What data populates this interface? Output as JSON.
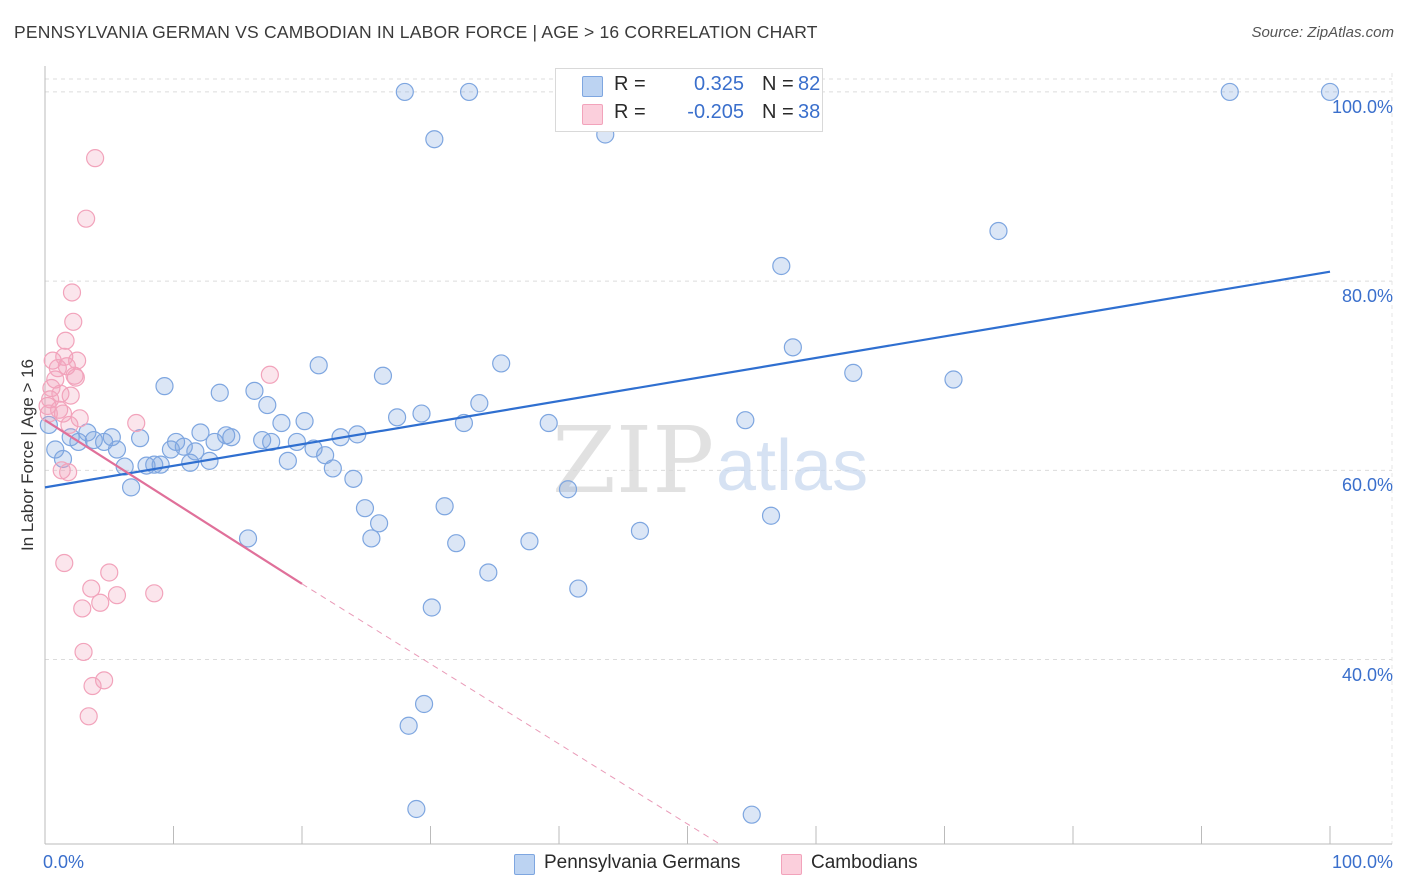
{
  "chart_data": {
    "type": "scatter",
    "title": "PENNSYLVANIA GERMAN VS CAMBODIAN IN LABOR FORCE | AGE > 16 CORRELATION CHART",
    "source": "Source: ZipAtlas.com",
    "xlabel": "",
    "ylabel": "In Labor Force | Age > 16",
    "xlim": [
      0,
      100
    ],
    "ylim": [
      20.5,
      102
    ],
    "x_tick_labels": [
      "0.0%",
      "100.0%"
    ],
    "y_ticks": [
      40,
      60,
      80,
      100
    ],
    "y_tick_labels": [
      "40.0%",
      "60.0%",
      "80.0%",
      "100.0%"
    ],
    "grid": true,
    "watermark": {
      "zip": "ZIP",
      "atlas": "atlas"
    },
    "legend": {
      "position": "top-center",
      "rows": [
        {
          "r_label": "R =",
          "r_value": "0.325",
          "n_label": "N =",
          "n_value": "82"
        },
        {
          "r_label": "R =",
          "r_value": "-0.205",
          "n_label": "N =",
          "n_value": "38"
        }
      ]
    },
    "series": [
      {
        "name": "Pennsylvania Germans",
        "color": "#7ea6e0",
        "line_color": "#2f6fd0",
        "trend": {
          "x": [
            0,
            100
          ],
          "y": [
            58.2,
            81.0
          ],
          "dashed_to": null
        },
        "points": [
          [
            0.3,
            64.8
          ],
          [
            0.8,
            62.2
          ],
          [
            1.4,
            61.2
          ],
          [
            2.0,
            63.5
          ],
          [
            2.6,
            63.0
          ],
          [
            3.3,
            64.0
          ],
          [
            3.8,
            63.2
          ],
          [
            4.6,
            63.0
          ],
          [
            5.2,
            63.5
          ],
          [
            5.6,
            62.2
          ],
          [
            6.2,
            60.4
          ],
          [
            6.7,
            58.2
          ],
          [
            7.4,
            63.4
          ],
          [
            7.9,
            60.5
          ],
          [
            8.5,
            60.6
          ],
          [
            9.0,
            60.6
          ],
          [
            9.3,
            68.9
          ],
          [
            9.8,
            62.2
          ],
          [
            10.2,
            63.0
          ],
          [
            10.8,
            62.5
          ],
          [
            11.3,
            60.8
          ],
          [
            11.7,
            62.0
          ],
          [
            12.1,
            64.0
          ],
          [
            12.8,
            61.0
          ],
          [
            13.2,
            63.0
          ],
          [
            13.6,
            68.2
          ],
          [
            14.1,
            63.7
          ],
          [
            14.5,
            63.5
          ],
          [
            15.8,
            52.8
          ],
          [
            16.3,
            68.4
          ],
          [
            16.9,
            63.2
          ],
          [
            17.3,
            66.9
          ],
          [
            17.6,
            63.0
          ],
          [
            18.4,
            65.0
          ],
          [
            18.9,
            61.0
          ],
          [
            19.6,
            63.0
          ],
          [
            20.2,
            65.2
          ],
          [
            20.9,
            62.3
          ],
          [
            21.3,
            71.1
          ],
          [
            21.8,
            61.6
          ],
          [
            22.4,
            60.2
          ],
          [
            23.0,
            63.5
          ],
          [
            24.0,
            59.1
          ],
          [
            24.3,
            63.8
          ],
          [
            24.9,
            56.0
          ],
          [
            25.4,
            52.8
          ],
          [
            26.0,
            54.4
          ],
          [
            26.3,
            70.0
          ],
          [
            27.4,
            65.6
          ],
          [
            28.3,
            33.0
          ],
          [
            28.9,
            24.2
          ],
          [
            29.3,
            66.0
          ],
          [
            30.1,
            45.5
          ],
          [
            31.1,
            56.2
          ],
          [
            32.0,
            52.3
          ],
          [
            32.6,
            65.0
          ],
          [
            33.8,
            67.1
          ],
          [
            34.5,
            49.2
          ],
          [
            35.5,
            71.3
          ],
          [
            37.7,
            52.5
          ],
          [
            39.2,
            65.0
          ],
          [
            40.7,
            58.0
          ],
          [
            41.5,
            47.5
          ],
          [
            29.5,
            35.3
          ],
          [
            46.3,
            53.6
          ],
          [
            54.5,
            65.3
          ],
          [
            55.0,
            23.6
          ],
          [
            56.5,
            55.2
          ],
          [
            57.3,
            81.6
          ],
          [
            58.2,
            73.0
          ],
          [
            70.7,
            69.6
          ],
          [
            62.9,
            70.3
          ],
          [
            74.2,
            85.3
          ],
          [
            92.2,
            100.0
          ],
          [
            100.0,
            100.0
          ],
          [
            28.0,
            100.0
          ],
          [
            30.3,
            95.0
          ],
          [
            48.4,
            100.0
          ],
          [
            43.6,
            95.5
          ],
          [
            33.0,
            100.0
          ],
          [
            46.0,
            100.0
          ],
          [
            46.5,
            97.0
          ]
        ]
      },
      {
        "name": "Cambodians",
        "color": "#f2a3bb",
        "line_color": "#e0709a",
        "trend": {
          "x": [
            0,
            20
          ],
          "y": [
            65.3,
            48.0
          ],
          "dashed_to": [
            52.5,
            20.5
          ]
        },
        "points": [
          [
            0.2,
            66.8
          ],
          [
            0.4,
            67.5
          ],
          [
            0.5,
            68.7
          ],
          [
            0.6,
            71.6
          ],
          [
            0.8,
            69.6
          ],
          [
            1.0,
            70.8
          ],
          [
            1.1,
            66.4
          ],
          [
            1.2,
            68.1
          ],
          [
            1.3,
            60.0
          ],
          [
            1.4,
            66.0
          ],
          [
            1.5,
            72.0
          ],
          [
            1.6,
            73.7
          ],
          [
            1.7,
            71.0
          ],
          [
            1.8,
            59.8
          ],
          [
            1.9,
            64.8
          ],
          [
            2.0,
            67.9
          ],
          [
            2.1,
            78.8
          ],
          [
            2.2,
            75.7
          ],
          [
            2.3,
            70.0
          ],
          [
            2.4,
            69.8
          ],
          [
            2.5,
            71.6
          ],
          [
            2.7,
            65.5
          ],
          [
            2.9,
            45.4
          ],
          [
            3.0,
            40.8
          ],
          [
            3.2,
            86.6
          ],
          [
            3.4,
            34.0
          ],
          [
            3.6,
            47.5
          ],
          [
            3.7,
            37.2
          ],
          [
            3.9,
            93.0
          ],
          [
            4.3,
            46.0
          ],
          [
            4.6,
            37.8
          ],
          [
            5.0,
            49.2
          ],
          [
            5.6,
            46.8
          ],
          [
            1.5,
            50.2
          ],
          [
            7.1,
            65.0
          ],
          [
            8.5,
            47.0
          ],
          [
            17.5,
            70.1
          ],
          [
            0.3,
            66.0
          ]
        ]
      }
    ]
  }
}
